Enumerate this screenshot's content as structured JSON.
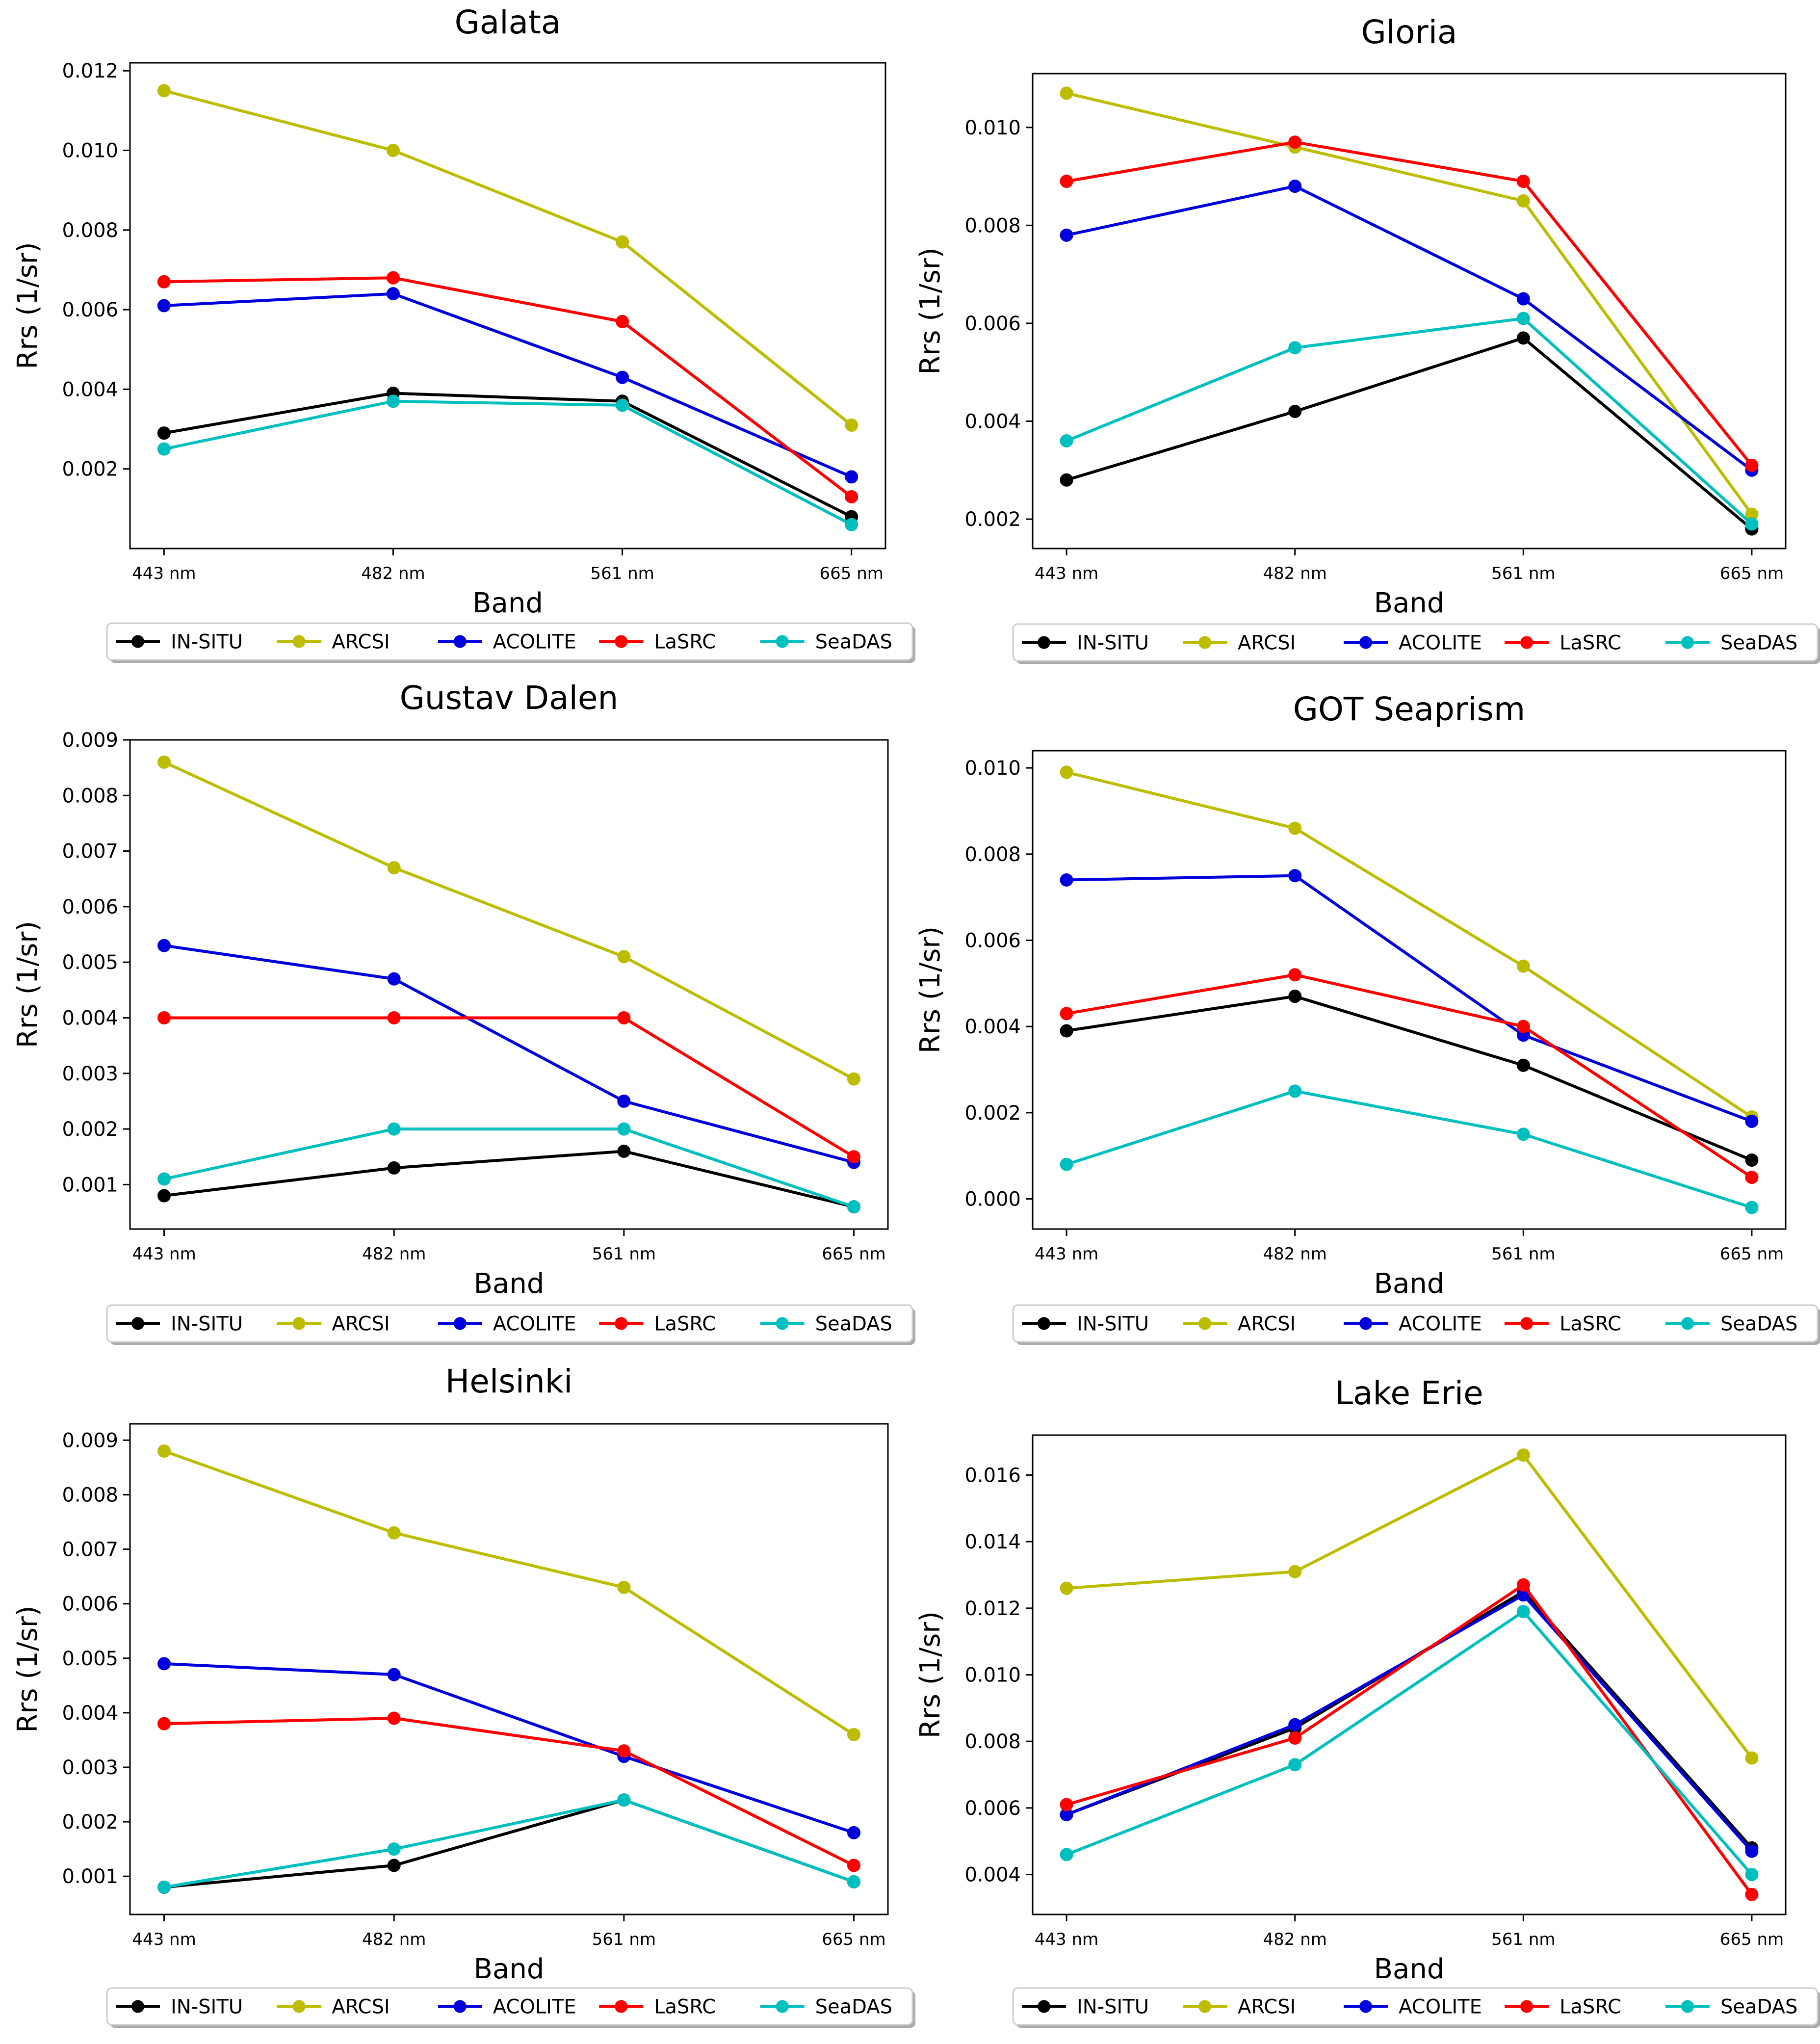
{
  "chart_data": [
    {
      "type": "line",
      "title": "Galata",
      "xlabel": "Band",
      "ylabel": "Rrs (1/sr)",
      "categories": [
        "443 nm",
        "482 nm",
        "561 nm",
        "665 nm"
      ],
      "ylim": [
        0.0,
        0.0122
      ],
      "yticks": [
        0.002,
        0.004,
        0.006,
        0.008,
        0.01,
        0.012
      ],
      "ytick_labels": [
        "0.002",
        "0.004",
        "0.006",
        "0.008",
        "0.010",
        "0.012"
      ],
      "legend_position": "bottom",
      "series": [
        {
          "name": "IN-SITU",
          "color": "#000000",
          "values": [
            0.0029,
            0.0039,
            0.0037,
            0.0008
          ]
        },
        {
          "name": "ARCSI",
          "color": "#bcbd00",
          "values": [
            0.0115,
            0.01,
            0.0077,
            0.0031
          ]
        },
        {
          "name": "ACOLITE",
          "color": "#0000dd",
          "values": [
            0.0061,
            0.0064,
            0.0043,
            0.0018
          ]
        },
        {
          "name": "LaSRC",
          "color": "#ff0000",
          "values": [
            0.0067,
            0.0068,
            0.0057,
            0.0013
          ]
        },
        {
          "name": "SeaDAS",
          "color": "#00bfbf",
          "values": [
            0.0025,
            0.0037,
            0.0036,
            0.0006
          ]
        }
      ]
    },
    {
      "type": "line",
      "title": "Gloria",
      "xlabel": "Band",
      "ylabel": "Rrs (1/sr)",
      "categories": [
        "443 nm",
        "482 nm",
        "561 nm",
        "665 nm"
      ],
      "ylim": [
        0.0014,
        0.0111
      ],
      "yticks": [
        0.002,
        0.004,
        0.006,
        0.008,
        0.01
      ],
      "ytick_labels": [
        "0.002",
        "0.004",
        "0.006",
        "0.008",
        "0.010"
      ],
      "legend_position": "bottom",
      "series": [
        {
          "name": "IN-SITU",
          "color": "#000000",
          "values": [
            0.0028,
            0.0042,
            0.0057,
            0.0018
          ]
        },
        {
          "name": "ARCSI",
          "color": "#bcbd00",
          "values": [
            0.0107,
            0.0096,
            0.0085,
            0.0021
          ]
        },
        {
          "name": "ACOLITE",
          "color": "#0000dd",
          "values": [
            0.0078,
            0.0088,
            0.0065,
            0.003
          ]
        },
        {
          "name": "LaSRC",
          "color": "#ff0000",
          "values": [
            0.0089,
            0.0097,
            0.0089,
            0.0031
          ]
        },
        {
          "name": "SeaDAS",
          "color": "#00bfbf",
          "values": [
            0.0036,
            0.0055,
            0.0061,
            0.0019
          ]
        }
      ]
    },
    {
      "type": "line",
      "title": "Gustav Dalen",
      "xlabel": "Band",
      "ylabel": "Rrs (1/sr)",
      "categories": [
        "443 nm",
        "482 nm",
        "561 nm",
        "665 nm"
      ],
      "ylim": [
        0.0002,
        0.009
      ],
      "yticks": [
        0.001,
        0.002,
        0.003,
        0.004,
        0.005,
        0.006,
        0.007,
        0.008,
        0.009
      ],
      "ytick_labels": [
        "0.001",
        "0.002",
        "0.003",
        "0.004",
        "0.005",
        "0.006",
        "0.007",
        "0.008",
        "0.009"
      ],
      "legend_position": "bottom",
      "series": [
        {
          "name": "IN-SITU",
          "color": "#000000",
          "values": [
            0.0008,
            0.0013,
            0.0016,
            0.0006
          ]
        },
        {
          "name": "ARCSI",
          "color": "#bcbd00",
          "values": [
            0.0086,
            0.0067,
            0.0051,
            0.0029
          ]
        },
        {
          "name": "ACOLITE",
          "color": "#0000dd",
          "values": [
            0.0053,
            0.0047,
            0.0025,
            0.0014
          ]
        },
        {
          "name": "LaSRC",
          "color": "#ff0000",
          "values": [
            0.004,
            0.004,
            0.004,
            0.0015
          ]
        },
        {
          "name": "SeaDAS",
          "color": "#00bfbf",
          "values": [
            0.0011,
            0.002,
            0.002,
            0.0006
          ]
        }
      ]
    },
    {
      "type": "line",
      "title": "GOT Seaprism",
      "xlabel": "Band",
      "ylabel": "Rrs (1/sr)",
      "categories": [
        "443 nm",
        "482 nm",
        "561 nm",
        "665 nm"
      ],
      "ylim": [
        -0.0007,
        0.0104
      ],
      "yticks": [
        0.0,
        0.002,
        0.004,
        0.006,
        0.008,
        0.01
      ],
      "ytick_labels": [
        "0.000",
        "0.002",
        "0.004",
        "0.006",
        "0.008",
        "0.010"
      ],
      "legend_position": "bottom",
      "series": [
        {
          "name": "IN-SITU",
          "color": "#000000",
          "values": [
            0.0039,
            0.0047,
            0.0031,
            0.0009
          ]
        },
        {
          "name": "ARCSI",
          "color": "#bcbd00",
          "values": [
            0.0099,
            0.0086,
            0.0054,
            0.0019
          ]
        },
        {
          "name": "ACOLITE",
          "color": "#0000dd",
          "values": [
            0.0074,
            0.0075,
            0.0038,
            0.0018
          ]
        },
        {
          "name": "LaSRC",
          "color": "#ff0000",
          "values": [
            0.0043,
            0.0052,
            0.004,
            0.0005
          ]
        },
        {
          "name": "SeaDAS",
          "color": "#00bfbf",
          "values": [
            0.0008,
            0.0025,
            0.0015,
            -0.0002
          ]
        }
      ]
    },
    {
      "type": "line",
      "title": "Helsinki",
      "xlabel": "Band",
      "ylabel": "Rrs (1/sr)",
      "categories": [
        "443 nm",
        "482 nm",
        "561 nm",
        "665 nm"
      ],
      "ylim": [
        0.0003,
        0.0093
      ],
      "yticks": [
        0.001,
        0.002,
        0.003,
        0.004,
        0.005,
        0.006,
        0.007,
        0.008,
        0.009
      ],
      "ytick_labels": [
        "0.001",
        "0.002",
        "0.003",
        "0.004",
        "0.005",
        "0.006",
        "0.007",
        "0.008",
        "0.009"
      ],
      "legend_position": "bottom",
      "series": [
        {
          "name": "IN-SITU",
          "color": "#000000",
          "values": [
            0.0008,
            0.0012,
            0.0024,
            0.0009
          ]
        },
        {
          "name": "ARCSI",
          "color": "#bcbd00",
          "values": [
            0.0088,
            0.0073,
            0.0063,
            0.0036
          ]
        },
        {
          "name": "ACOLITE",
          "color": "#0000dd",
          "values": [
            0.0049,
            0.0047,
            0.0032,
            0.0018
          ]
        },
        {
          "name": "LaSRC",
          "color": "#ff0000",
          "values": [
            0.0038,
            0.0039,
            0.0033,
            0.0012
          ]
        },
        {
          "name": "SeaDAS",
          "color": "#00bfbf",
          "values": [
            0.0008,
            0.0015,
            0.0024,
            0.0009
          ]
        }
      ]
    },
    {
      "type": "line",
      "title": "Lake Erie",
      "xlabel": "Band",
      "ylabel": "Rrs (1/sr)",
      "categories": [
        "443 nm",
        "482 nm",
        "561 nm",
        "665 nm"
      ],
      "ylim": [
        0.0028,
        0.0172
      ],
      "yticks": [
        0.004,
        0.006,
        0.008,
        0.01,
        0.012,
        0.014,
        0.016
      ],
      "ytick_labels": [
        "0.004",
        "0.006",
        "0.008",
        "0.010",
        "0.012",
        "0.014",
        "0.016"
      ],
      "legend_position": "bottom",
      "series": [
        {
          "name": "IN-SITU",
          "color": "#000000",
          "values": [
            0.0058,
            0.0084,
            0.0125,
            0.0048
          ]
        },
        {
          "name": "ARCSI",
          "color": "#bcbd00",
          "values": [
            0.0126,
            0.0131,
            0.0166,
            0.0075
          ]
        },
        {
          "name": "ACOLITE",
          "color": "#0000dd",
          "values": [
            0.0058,
            0.0085,
            0.0124,
            0.0047
          ]
        },
        {
          "name": "LaSRC",
          "color": "#ff0000",
          "values": [
            0.0061,
            0.0081,
            0.0127,
            0.0034
          ]
        },
        {
          "name": "SeaDAS",
          "color": "#00bfbf",
          "values": [
            0.0046,
            0.0073,
            0.0119,
            0.004
          ]
        }
      ]
    }
  ]
}
